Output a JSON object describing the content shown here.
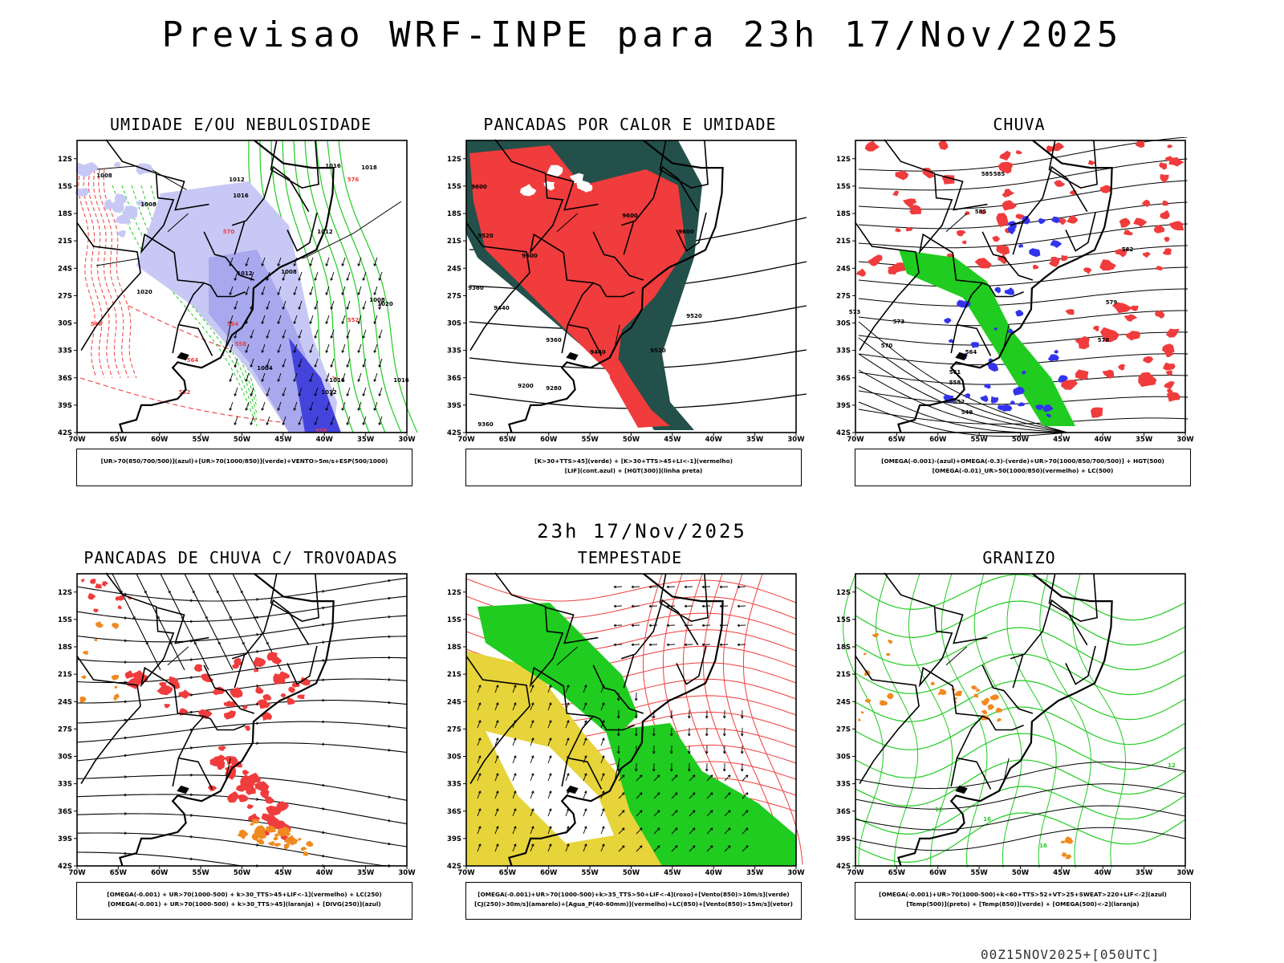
{
  "header": {
    "title": "Previsao WRF-INPE  para 23h 17/Nov/2025"
  },
  "mid_title": "23h 17/Nov/2025",
  "footer": "00Z15NOV2025+[050UTC]",
  "axes": {
    "lat_labels": [
      "12S",
      "15S",
      "18S",
      "21S",
      "24S",
      "27S",
      "30S",
      "33S",
      "36S",
      "39S",
      "42S"
    ],
    "lon_labels": [
      "70W",
      "65W",
      "60W",
      "55W",
      "50W",
      "45W",
      "40W",
      "35W",
      "30W"
    ]
  },
  "colors": {
    "red": "#f03c3c",
    "green": "#1fcc1f",
    "blue": "#3333ee",
    "lavender": "#a8a8ee",
    "lightlavender": "#c8c8f6",
    "darkteal": "#23504a",
    "yellow": "#e6d43a",
    "orange": "#f08a20",
    "purple": "#7a3cc8"
  },
  "panels": [
    {
      "title": "UMIDADE E/OU NEBULOSIDADE",
      "legend": [
        "[UR>70(850/700/500)](azul)+[UR>70(1000/850)](verde)+VENTO>5m/s+ESP(500/1000)"
      ],
      "contour_labels": [
        "1008",
        "1012",
        "1016",
        "1016",
        "1008",
        "1012",
        "1008",
        "1012",
        "1004",
        "1016",
        "1012",
        "1008",
        "1020",
        "1018",
        "1016",
        "1020",
        "576",
        "570",
        "564",
        "558",
        "552",
        "546",
        "552",
        "558",
        "564"
      ]
    },
    {
      "title": "PANCADAS POR CALOR E UMIDADE",
      "legend": [
        "[K>30+TTS>45](verde) + [K>30+TTS>45+LI<-1](vermelho)",
        "[LIF](cont.azul) + [HGT(300)](linha preta)"
      ],
      "contour_labels": [
        "9600",
        "9520",
        "9600",
        "9360",
        "9440",
        "9520",
        "9360",
        "9440",
        "9280",
        "9200",
        "9360",
        "9520",
        "9600",
        "9600"
      ]
    },
    {
      "title": "CHUVA",
      "legend": [
        "[OMEGA(-0.001)-(azul)+OMEGA(-0.3)-(verde)+UR>70(1000/850/700/500)] + HGT(500)",
        "[OMEGA(-0.01)_UR>50(1000/850)(vermelho) + LC(500)"
      ],
      "contour_labels": [
        "585",
        "585",
        "582",
        "579",
        "576",
        "573",
        "570",
        "564",
        "561",
        "558",
        "552",
        "549",
        "585",
        "573"
      ]
    },
    {
      "title": "PANCADAS DE CHUVA C/ TROVOADAS",
      "legend": [
        "[OMEGA(-0.001) + UR>70(1000-500) + k>30_TTS>45+LIF<-1](vermelho) + LC(250)",
        "[OMEGA(-0.001) + UR>70(1000-500) + k>30_TTS>45](laranja) + [DIVG(250)](azul)"
      ],
      "contour_labels": []
    },
    {
      "title": "TEMPESTADE",
      "legend": [
        "[OMEGA(-0.001)+UR>70(1000-500)+k>35_TTS>50+LIF<-4](roxo)+[Vento(850)>10m/s](verde)",
        "[CJ(250)>30m/s](amarelo)+[Agua_P(40-60mm)](vermelho)+LC(850)+[Vento(850)>15m/s](vetor)"
      ],
      "contour_labels": []
    },
    {
      "title": "GRANIZO",
      "legend": [
        "[OMEGA(-0.001)+UR>70(1000-500)+k<60+TTS>52+VT>25+SWEAT>220+LIF<-2](azul)",
        "[Temp(500)](preto) + [Temp(850)](verde) + [OMEGA(500)<-2](laranja)"
      ],
      "contour_labels": [
        "12",
        "12",
        "16",
        "16"
      ]
    }
  ]
}
